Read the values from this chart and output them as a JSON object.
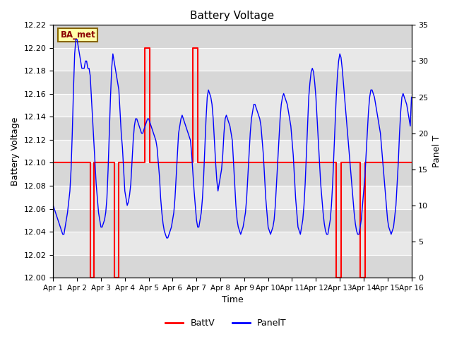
{
  "title": "Battery Voltage",
  "xlabel": "Time",
  "ylabel_left": "Battery Voltage",
  "ylabel_right": "Panel T",
  "ylim_left": [
    12.0,
    12.22
  ],
  "ylim_right": [
    0,
    35
  ],
  "xlim": [
    0,
    15
  ],
  "x_tick_labels": [
    "Apr 1",
    "Apr 2",
    "Apr 3",
    "Apr 4",
    "Apr 5",
    "Apr 6",
    "Apr 7",
    "Apr 8",
    "Apr 9",
    "Apr 10",
    "Apr 11",
    "Apr 12",
    "Apr 13",
    "Apr 14",
    "Apr 15",
    "Apr 16"
  ],
  "annotation_text": "BA_met",
  "annotation_bg": "#ffffaa",
  "annotation_border": "#886600",
  "plot_bg": "#e8e8e8",
  "fig_bg": "#ffffff",
  "battv_color": "#ff0000",
  "panelt_color": "#0000ff",
  "battv_data": [
    [
      0.0,
      12.1
    ],
    [
      0.9,
      12.1
    ],
    [
      0.9,
      12.1
    ],
    [
      1.0,
      12.1
    ],
    [
      1.0,
      12.1
    ],
    [
      1.55,
      12.1
    ],
    [
      1.55,
      12.0
    ],
    [
      1.7,
      12.0
    ],
    [
      1.7,
      12.1
    ],
    [
      2.0,
      12.1
    ],
    [
      2.0,
      12.1
    ],
    [
      2.55,
      12.1
    ],
    [
      2.55,
      12.0
    ],
    [
      2.75,
      12.0
    ],
    [
      2.75,
      12.1
    ],
    [
      3.0,
      12.1
    ],
    [
      3.0,
      12.1
    ],
    [
      3.85,
      12.1
    ],
    [
      3.85,
      12.2
    ],
    [
      4.05,
      12.2
    ],
    [
      4.05,
      12.1
    ],
    [
      5.0,
      12.1
    ],
    [
      5.0,
      12.1
    ],
    [
      5.85,
      12.1
    ],
    [
      5.85,
      12.2
    ],
    [
      6.05,
      12.2
    ],
    [
      6.05,
      12.1
    ],
    [
      11.85,
      12.1
    ],
    [
      11.85,
      12.0
    ],
    [
      12.05,
      12.0
    ],
    [
      12.05,
      12.1
    ],
    [
      12.85,
      12.1
    ],
    [
      12.85,
      12.0
    ],
    [
      13.05,
      12.0
    ],
    [
      13.05,
      12.1
    ],
    [
      15.0,
      12.1
    ]
  ],
  "panelt_data": [
    [
      0.0,
      10
    ],
    [
      0.05,
      9.5
    ],
    [
      0.1,
      9
    ],
    [
      0.15,
      8.5
    ],
    [
      0.2,
      8
    ],
    [
      0.25,
      7.5
    ],
    [
      0.3,
      7
    ],
    [
      0.35,
      6.5
    ],
    [
      0.4,
      6
    ],
    [
      0.45,
      6
    ],
    [
      0.5,
      7
    ],
    [
      0.55,
      8
    ],
    [
      0.6,
      9
    ],
    [
      0.65,
      10.5
    ],
    [
      0.7,
      12
    ],
    [
      0.75,
      15
    ],
    [
      0.8,
      20
    ],
    [
      0.85,
      26
    ],
    [
      0.9,
      31
    ],
    [
      0.95,
      33
    ],
    [
      1.0,
      33
    ],
    [
      1.05,
      32
    ],
    [
      1.1,
      31
    ],
    [
      1.15,
      30
    ],
    [
      1.2,
      29
    ],
    [
      1.25,
      29
    ],
    [
      1.3,
      29
    ],
    [
      1.35,
      30
    ],
    [
      1.4,
      30
    ],
    [
      1.45,
      29
    ],
    [
      1.5,
      29
    ],
    [
      1.55,
      28
    ],
    [
      1.6,
      25
    ],
    [
      1.65,
      22
    ],
    [
      1.7,
      19
    ],
    [
      1.75,
      16
    ],
    [
      1.8,
      13
    ],
    [
      1.85,
      11
    ],
    [
      1.9,
      9
    ],
    [
      1.95,
      8
    ],
    [
      2.0,
      7
    ],
    [
      2.05,
      7
    ],
    [
      2.1,
      7.5
    ],
    [
      2.15,
      8
    ],
    [
      2.2,
      9
    ],
    [
      2.25,
      11
    ],
    [
      2.3,
      15
    ],
    [
      2.35,
      20
    ],
    [
      2.4,
      25
    ],
    [
      2.45,
      29
    ],
    [
      2.5,
      31
    ],
    [
      2.55,
      30
    ],
    [
      2.6,
      29
    ],
    [
      2.65,
      28
    ],
    [
      2.7,
      27
    ],
    [
      2.75,
      26
    ],
    [
      2.8,
      23
    ],
    [
      2.85,
      20
    ],
    [
      2.9,
      18
    ],
    [
      2.95,
      15
    ],
    [
      3.0,
      12
    ],
    [
      3.05,
      11
    ],
    [
      3.1,
      10
    ],
    [
      3.15,
      10.5
    ],
    [
      3.2,
      11.5
    ],
    [
      3.25,
      13
    ],
    [
      3.3,
      16
    ],
    [
      3.35,
      19
    ],
    [
      3.4,
      21
    ],
    [
      3.45,
      22
    ],
    [
      3.5,
      22
    ],
    [
      3.55,
      21.5
    ],
    [
      3.6,
      21
    ],
    [
      3.65,
      20.5
    ],
    [
      3.7,
      20
    ],
    [
      3.75,
      20
    ],
    [
      3.8,
      20.5
    ],
    [
      3.85,
      21
    ],
    [
      3.9,
      21.5
    ],
    [
      3.95,
      22
    ],
    [
      4.0,
      22
    ],
    [
      4.05,
      21.5
    ],
    [
      4.1,
      21
    ],
    [
      4.15,
      20.5
    ],
    [
      4.2,
      20
    ],
    [
      4.25,
      19.5
    ],
    [
      4.3,
      19
    ],
    [
      4.35,
      18
    ],
    [
      4.4,
      16
    ],
    [
      4.45,
      14
    ],
    [
      4.5,
      11
    ],
    [
      4.55,
      9
    ],
    [
      4.6,
      7.5
    ],
    [
      4.65,
      6.5
    ],
    [
      4.7,
      6
    ],
    [
      4.75,
      5.5
    ],
    [
      4.8,
      5.5
    ],
    [
      4.85,
      6
    ],
    [
      4.9,
      6.5
    ],
    [
      4.95,
      7
    ],
    [
      5.0,
      8
    ],
    [
      5.05,
      9
    ],
    [
      5.1,
      11
    ],
    [
      5.15,
      14
    ],
    [
      5.2,
      17
    ],
    [
      5.25,
      20
    ],
    [
      5.3,
      21
    ],
    [
      5.35,
      22
    ],
    [
      5.4,
      22.5
    ],
    [
      5.45,
      22
    ],
    [
      5.5,
      21.5
    ],
    [
      5.55,
      21
    ],
    [
      5.6,
      20.5
    ],
    [
      5.65,
      20
    ],
    [
      5.7,
      19.5
    ],
    [
      5.75,
      19
    ],
    [
      5.8,
      17
    ],
    [
      5.85,
      14.5
    ],
    [
      5.9,
      12
    ],
    [
      5.95,
      10
    ],
    [
      6.0,
      8
    ],
    [
      6.05,
      7
    ],
    [
      6.1,
      7
    ],
    [
      6.15,
      8
    ],
    [
      6.2,
      9
    ],
    [
      6.25,
      11
    ],
    [
      6.3,
      14
    ],
    [
      6.35,
      18
    ],
    [
      6.4,
      22
    ],
    [
      6.45,
      25
    ],
    [
      6.5,
      26
    ],
    [
      6.55,
      25.5
    ],
    [
      6.6,
      25
    ],
    [
      6.65,
      24
    ],
    [
      6.7,
      22
    ],
    [
      6.75,
      19
    ],
    [
      6.8,
      16
    ],
    [
      6.85,
      13.5
    ],
    [
      6.9,
      12
    ],
    [
      6.95,
      13
    ],
    [
      7.0,
      14
    ],
    [
      7.05,
      15
    ],
    [
      7.1,
      17
    ],
    [
      7.15,
      20
    ],
    [
      7.2,
      22
    ],
    [
      7.25,
      22.5
    ],
    [
      7.3,
      22
    ],
    [
      7.35,
      21.5
    ],
    [
      7.4,
      21
    ],
    [
      7.45,
      20
    ],
    [
      7.5,
      19
    ],
    [
      7.55,
      16
    ],
    [
      7.6,
      13
    ],
    [
      7.65,
      10
    ],
    [
      7.7,
      8
    ],
    [
      7.75,
      7
    ],
    [
      7.8,
      6.5
    ],
    [
      7.85,
      6
    ],
    [
      7.9,
      6.5
    ],
    [
      7.95,
      7
    ],
    [
      8.0,
      8
    ],
    [
      8.05,
      9
    ],
    [
      8.1,
      11
    ],
    [
      8.15,
      14
    ],
    [
      8.2,
      17
    ],
    [
      8.25,
      20
    ],
    [
      8.3,
      22
    ],
    [
      8.35,
      23
    ],
    [
      8.4,
      24
    ],
    [
      8.45,
      24
    ],
    [
      8.5,
      23.5
    ],
    [
      8.55,
      23
    ],
    [
      8.6,
      22.5
    ],
    [
      8.65,
      22
    ],
    [
      8.7,
      21
    ],
    [
      8.75,
      19
    ],
    [
      8.8,
      17
    ],
    [
      8.85,
      14
    ],
    [
      8.9,
      11
    ],
    [
      8.95,
      9
    ],
    [
      9.0,
      7
    ],
    [
      9.05,
      6.5
    ],
    [
      9.1,
      6
    ],
    [
      9.15,
      6.5
    ],
    [
      9.2,
      7
    ],
    [
      9.25,
      8
    ],
    [
      9.3,
      10
    ],
    [
      9.35,
      13
    ],
    [
      9.4,
      16
    ],
    [
      9.45,
      19
    ],
    [
      9.5,
      22
    ],
    [
      9.55,
      24
    ],
    [
      9.6,
      25
    ],
    [
      9.65,
      25.5
    ],
    [
      9.7,
      25
    ],
    [
      9.75,
      24.5
    ],
    [
      9.8,
      24
    ],
    [
      9.85,
      23
    ],
    [
      9.9,
      22
    ],
    [
      9.95,
      21
    ],
    [
      10.0,
      19
    ],
    [
      10.05,
      17
    ],
    [
      10.1,
      14
    ],
    [
      10.15,
      11
    ],
    [
      10.2,
      9
    ],
    [
      10.25,
      7
    ],
    [
      10.3,
      6.5
    ],
    [
      10.35,
      6
    ],
    [
      10.4,
      7
    ],
    [
      10.45,
      8
    ],
    [
      10.5,
      10
    ],
    [
      10.55,
      13
    ],
    [
      10.6,
      17
    ],
    [
      10.65,
      21
    ],
    [
      10.7,
      25
    ],
    [
      10.75,
      27
    ],
    [
      10.8,
      28.5
    ],
    [
      10.85,
      29
    ],
    [
      10.9,
      28.5
    ],
    [
      10.95,
      27
    ],
    [
      11.0,
      25
    ],
    [
      11.05,
      22
    ],
    [
      11.1,
      19
    ],
    [
      11.15,
      16
    ],
    [
      11.2,
      13
    ],
    [
      11.25,
      11
    ],
    [
      11.3,
      9
    ],
    [
      11.35,
      7.5
    ],
    [
      11.4,
      6.5
    ],
    [
      11.45,
      6
    ],
    [
      11.5,
      6
    ],
    [
      11.55,
      7
    ],
    [
      11.6,
      8
    ],
    [
      11.65,
      10
    ],
    [
      11.7,
      13
    ],
    [
      11.75,
      17
    ],
    [
      11.8,
      21
    ],
    [
      11.85,
      25
    ],
    [
      11.9,
      28
    ],
    [
      11.95,
      30
    ],
    [
      12.0,
      31
    ],
    [
      12.05,
      30.5
    ],
    [
      12.1,
      29
    ],
    [
      12.15,
      27
    ],
    [
      12.2,
      25
    ],
    [
      12.25,
      23
    ],
    [
      12.3,
      21
    ],
    [
      12.35,
      19
    ],
    [
      12.4,
      17
    ],
    [
      12.45,
      15
    ],
    [
      12.5,
      13
    ],
    [
      12.55,
      11
    ],
    [
      12.6,
      9
    ],
    [
      12.65,
      7.5
    ],
    [
      12.7,
      6.5
    ],
    [
      12.75,
      6
    ],
    [
      12.8,
      6
    ],
    [
      12.85,
      7
    ],
    [
      12.9,
      8
    ],
    [
      12.95,
      10
    ],
    [
      13.0,
      12
    ],
    [
      13.05,
      14
    ],
    [
      13.1,
      17
    ],
    [
      13.15,
      20
    ],
    [
      13.2,
      23
    ],
    [
      13.25,
      25
    ],
    [
      13.3,
      26
    ],
    [
      13.35,
      26
    ],
    [
      13.4,
      25.5
    ],
    [
      13.45,
      25
    ],
    [
      13.5,
      24
    ],
    [
      13.55,
      23
    ],
    [
      13.6,
      22
    ],
    [
      13.65,
      21
    ],
    [
      13.7,
      20
    ],
    [
      13.75,
      18
    ],
    [
      13.8,
      16
    ],
    [
      13.85,
      14
    ],
    [
      13.9,
      12
    ],
    [
      13.95,
      10
    ],
    [
      14.0,
      8
    ],
    [
      14.05,
      7
    ],
    [
      14.1,
      6.5
    ],
    [
      14.15,
      6
    ],
    [
      14.2,
      6.5
    ],
    [
      14.25,
      7
    ],
    [
      14.3,
      8.5
    ],
    [
      14.35,
      10
    ],
    [
      14.4,
      13
    ],
    [
      14.45,
      16
    ],
    [
      14.5,
      20
    ],
    [
      14.55,
      23
    ],
    [
      14.6,
      25
    ],
    [
      14.65,
      25.5
    ],
    [
      14.7,
      25
    ],
    [
      14.75,
      24.5
    ],
    [
      14.8,
      24
    ],
    [
      14.85,
      23
    ],
    [
      14.9,
      22
    ],
    [
      14.95,
      21
    ],
    [
      15.0,
      25
    ]
  ]
}
